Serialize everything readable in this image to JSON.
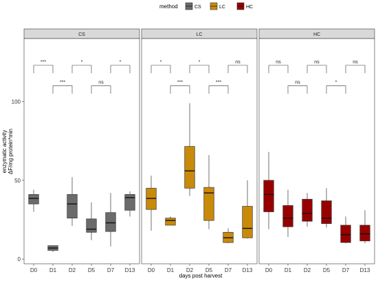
{
  "chart_data": {
    "type": "box",
    "legend": {
      "title": "method",
      "position": "top",
      "items": [
        {
          "label": "CS",
          "color": "#6b6b6b"
        },
        {
          "label": "LC",
          "color": "#c98a0a"
        },
        {
          "label": "HC",
          "color": "#980000"
        }
      ]
    },
    "xlabel": "days post harvest",
    "ylabel_line1": "enzymatic activity",
    "ylabel_line2": "ΔF/mg protein*min",
    "y_ticks": [
      0,
      50,
      100
    ],
    "ylim": [
      -3,
      140
    ],
    "categories": [
      "D0",
      "D1",
      "D2",
      "D5",
      "D7",
      "D13"
    ],
    "panels": [
      {
        "title": "CS",
        "color": "#6b6b6b",
        "boxes": [
          {
            "lower_whisker": 30,
            "q1": 35,
            "median": 38.5,
            "q3": 41,
            "upper_whisker": 44
          },
          {
            "lower_whisker": 4.5,
            "q1": 5.5,
            "median": 7,
            "q3": 8.5,
            "upper_whisker": 8.5
          },
          {
            "lower_whisker": 21,
            "q1": 26,
            "median": 35,
            "q3": 41,
            "upper_whisker": 52
          },
          {
            "lower_whisker": 12,
            "q1": 17,
            "median": 19,
            "q3": 25.5,
            "upper_whisker": 36
          },
          {
            "lower_whisker": 8,
            "q1": 17.5,
            "median": 23,
            "q3": 29.5,
            "upper_whisker": 42
          },
          {
            "lower_whisker": 27,
            "q1": 31,
            "median": 39,
            "q3": 41,
            "upper_whisker": 43
          }
        ],
        "annotations": [
          {
            "from": "D0",
            "to": "D1",
            "label": "***",
            "level": "upper"
          },
          {
            "from": "D2",
            "to": "D5",
            "label": "*",
            "level": "upper"
          },
          {
            "from": "D7",
            "to": "D13",
            "label": "*",
            "level": "upper"
          },
          {
            "from": "D1",
            "to": "D2",
            "label": "***",
            "level": "lower"
          },
          {
            "from": "D5",
            "to": "D7",
            "label": "ns",
            "level": "lower"
          }
        ]
      },
      {
        "title": "LC",
        "color": "#c98a0a",
        "boxes": [
          {
            "lower_whisker": 18,
            "q1": 31.5,
            "median": 38.5,
            "q3": 45,
            "upper_whisker": 53
          },
          {
            "lower_whisker": 21.5,
            "q1": 21.5,
            "median": 24.5,
            "q3": 26,
            "upper_whisker": 27
          },
          {
            "lower_whisker": 40,
            "q1": 45,
            "median": 56,
            "q3": 71.5,
            "upper_whisker": 99
          },
          {
            "lower_whisker": 19,
            "q1": 24.5,
            "median": 42,
            "q3": 45.5,
            "upper_whisker": 66
          },
          {
            "lower_whisker": 10,
            "q1": 10.5,
            "median": 13.5,
            "q3": 17,
            "upper_whisker": 19.5
          },
          {
            "lower_whisker": 13,
            "q1": 13.5,
            "median": 19.5,
            "q3": 33.5,
            "upper_whisker": 50
          }
        ],
        "annotations": [
          {
            "from": "D0",
            "to": "D1",
            "label": "*",
            "level": "upper"
          },
          {
            "from": "D2",
            "to": "D5",
            "label": "*",
            "level": "upper"
          },
          {
            "from": "D7",
            "to": "D13",
            "label": "ns",
            "level": "upper"
          },
          {
            "from": "D1",
            "to": "D2",
            "label": "***",
            "level": "lower"
          },
          {
            "from": "D5",
            "to": "D7",
            "label": "***",
            "level": "lower"
          }
        ]
      },
      {
        "title": "HC",
        "color": "#980000",
        "boxes": [
          {
            "lower_whisker": 19,
            "q1": 30,
            "median": 41,
            "q3": 50,
            "upper_whisker": 68
          },
          {
            "lower_whisker": 14,
            "q1": 20.5,
            "median": 26,
            "q3": 34,
            "upper_whisker": 44
          },
          {
            "lower_whisker": 20.5,
            "q1": 24,
            "median": 29,
            "q3": 38,
            "upper_whisker": 42
          },
          {
            "lower_whisker": 20,
            "q1": 22.5,
            "median": 26,
            "q3": 37,
            "upper_whisker": 45
          },
          {
            "lower_whisker": 10,
            "q1": 10.5,
            "median": 15.5,
            "q3": 21.5,
            "upper_whisker": 27
          },
          {
            "lower_whisker": 10,
            "q1": 11.5,
            "median": 16,
            "q3": 21.5,
            "upper_whisker": 31
          }
        ],
        "annotations": [
          {
            "from": "D0",
            "to": "D1",
            "label": "ns",
            "level": "upper"
          },
          {
            "from": "D2",
            "to": "D5",
            "label": "ns",
            "level": "upper"
          },
          {
            "from": "D7",
            "to": "D13",
            "label": "ns",
            "level": "upper"
          },
          {
            "from": "D1",
            "to": "D2",
            "label": "ns",
            "level": "lower"
          },
          {
            "from": "D5",
            "to": "D7",
            "label": "*",
            "level": "lower"
          }
        ]
      }
    ]
  }
}
